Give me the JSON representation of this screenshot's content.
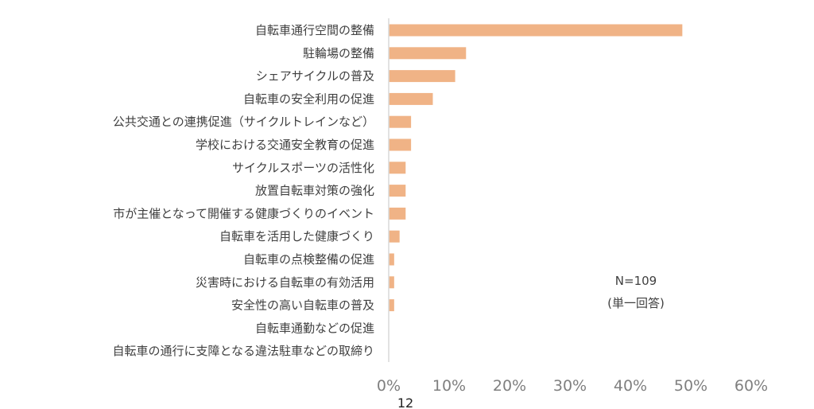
{
  "chart_data": {
    "type": "bar",
    "orientation": "horizontal",
    "categories": [
      "自転車通行空間の整備",
      "駐輪場の整備",
      "シェアサイクルの普及",
      "自転車の安全利用の促進",
      "公共交通との連携促進（サイクルトレインなど）",
      "学校における交通安全教育の促進",
      "サイクルスポーツの活性化",
      "放置自転車対策の強化",
      "市が主催となって開催する健康づくりのイベント",
      "自転車を活用した健康づくり",
      "自転車の点検整備の促進",
      "災害時における自転車の有効活用",
      "安全性の高い自転車の普及",
      "自転車通勤などの促進",
      "自転車の通行に支障となる違法駐車などの取締り"
    ],
    "values": [
      48.6,
      12.8,
      11.0,
      7.3,
      3.7,
      3.7,
      2.8,
      2.8,
      2.8,
      1.8,
      0.9,
      0.9,
      0.9,
      0,
      0
    ],
    "xlim": [
      0,
      60
    ],
    "ticks": [
      "0%",
      "10%",
      "20%",
      "30%",
      "40%",
      "50%",
      "60%"
    ],
    "bar_color": "#f0b386",
    "axis_color": "#d9d9d9",
    "grid": false,
    "annotation": [
      "N=109",
      "(単一回答)"
    ]
  },
  "page_number": "12"
}
